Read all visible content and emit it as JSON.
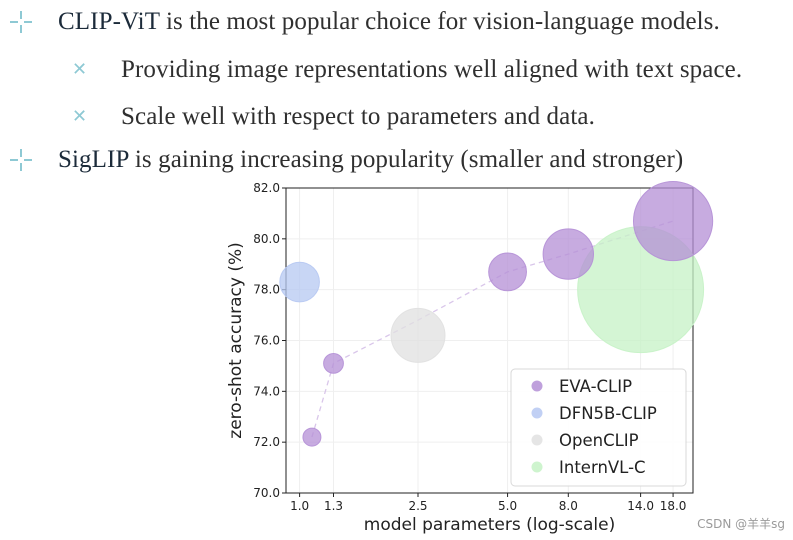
{
  "bullets": [
    {
      "bold": "CLIP-ViT",
      "rest": " is the most popular choice for vision-language models."
    },
    {
      "text": "Providing image representations well aligned with text space."
    },
    {
      "text": "Scale well with respect to parameters and data."
    },
    {
      "bold": "SigLIP",
      "rest": " is gaining increasing popularity (smaller and stronger)"
    }
  ],
  "colors": {
    "bullet_marker": "#8ec9d4",
    "eva": "#b48fd6",
    "dfn": "#b6c8f2",
    "openclip": "#e0e0e0",
    "internvl": "#c6f2c6"
  },
  "watermark": "CSDN @羊羊sg",
  "chart_data": {
    "type": "scatter",
    "title": "",
    "xlabel": "model parameters (log-scale)",
    "ylabel": "zero-shot accuracy (%)",
    "xscale": "log",
    "xlim": [
      0.9,
      21
    ],
    "ylim": [
      70.0,
      82.0
    ],
    "xticks": [
      1.0,
      1.3,
      2.5,
      5.0,
      8.0,
      14.0,
      18.0
    ],
    "xtick_labels": [
      "1.0",
      "1.3",
      "2.5",
      "5.0",
      "8.0",
      "14.0",
      "18.0"
    ],
    "yticks": [
      70.0,
      72.0,
      74.0,
      76.0,
      78.0,
      80.0,
      82.0
    ],
    "ytick_labels": [
      "70.0",
      "72.0",
      "74.0",
      "76.0",
      "78.0",
      "80.0",
      "82.0"
    ],
    "grid": true,
    "legend_position": "bottom-right",
    "series": [
      {
        "name": "EVA-CLIP",
        "color": "#b48fd6",
        "points": [
          {
            "x": 1.1,
            "y": 72.2,
            "size": 1
          },
          {
            "x": 1.3,
            "y": 75.1,
            "size": 1.1
          },
          {
            "x": 5.0,
            "y": 78.7,
            "size": 2.1
          },
          {
            "x": 8.0,
            "y": 79.4,
            "size": 2.8
          },
          {
            "x": 18.0,
            "y": 80.7,
            "size": 4.4
          }
        ]
      },
      {
        "name": "DFN5B-CLIP",
        "color": "#b6c8f2",
        "points": [
          {
            "x": 1.0,
            "y": 78.3,
            "size": 2.2
          }
        ]
      },
      {
        "name": "OpenCLIP",
        "color": "#e0e0e0",
        "points": [
          {
            "x": 2.5,
            "y": 76.2,
            "size": 3.0
          }
        ]
      },
      {
        "name": "InternVL-C",
        "color": "#c6f2c6",
        "points": [
          {
            "x": 14.0,
            "y": 78.0,
            "size": 7.0
          }
        ]
      }
    ],
    "trend_line": {
      "color": "#d9c6ea",
      "points": [
        {
          "x": 1.1,
          "y": 72.2
        },
        {
          "x": 1.3,
          "y": 75.1
        },
        {
          "x": 2.5,
          "y": 76.8
        },
        {
          "x": 5.0,
          "y": 78.7
        },
        {
          "x": 8.0,
          "y": 79.4
        },
        {
          "x": 18.0,
          "y": 80.7
        }
      ]
    }
  }
}
